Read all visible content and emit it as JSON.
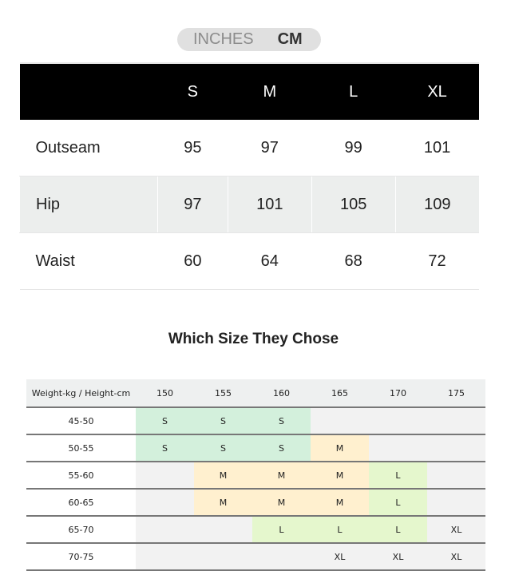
{
  "toggle": {
    "inches": "INCHES",
    "cm": "CM",
    "selected": "CM"
  },
  "size_table": {
    "headers": [
      "",
      "S",
      "M",
      "L",
      "XL"
    ],
    "rows": [
      {
        "label": "Outseam",
        "values": [
          "95",
          "97",
          "99",
          "101"
        ]
      },
      {
        "label": "Hip",
        "values": [
          "97",
          "101",
          "105",
          "109"
        ]
      },
      {
        "label": "Waist",
        "values": [
          "60",
          "64",
          "68",
          "72"
        ]
      }
    ]
  },
  "chooser": {
    "title": "Which Size They Chose",
    "corner": "Weight-kg / Height-cm",
    "heights": [
      "150",
      "155",
      "160",
      "165",
      "170",
      "175"
    ],
    "rows": [
      {
        "label": "45-50",
        "cells": [
          "S",
          "S",
          "S",
          "",
          "",
          ""
        ]
      },
      {
        "label": "50-55",
        "cells": [
          "S",
          "S",
          "S",
          "M",
          "",
          ""
        ]
      },
      {
        "label": "55-60",
        "cells": [
          "",
          "M",
          "M",
          "M",
          "L",
          ""
        ]
      },
      {
        "label": "60-65",
        "cells": [
          "",
          "M",
          "M",
          "M",
          "L",
          ""
        ]
      },
      {
        "label": "65-70",
        "cells": [
          "",
          "",
          "L",
          "L",
          "L",
          "XL"
        ]
      },
      {
        "label": "70-75",
        "cells": [
          "",
          "",
          "",
          "XL",
          "XL",
          "XL"
        ]
      }
    ],
    "colors": {
      "S": "#d3f0dc",
      "M": "#fff0cf",
      "L": "#e5f7cd",
      "XL": "#f2f2f2",
      "empty": "#f2f2f2"
    }
  }
}
